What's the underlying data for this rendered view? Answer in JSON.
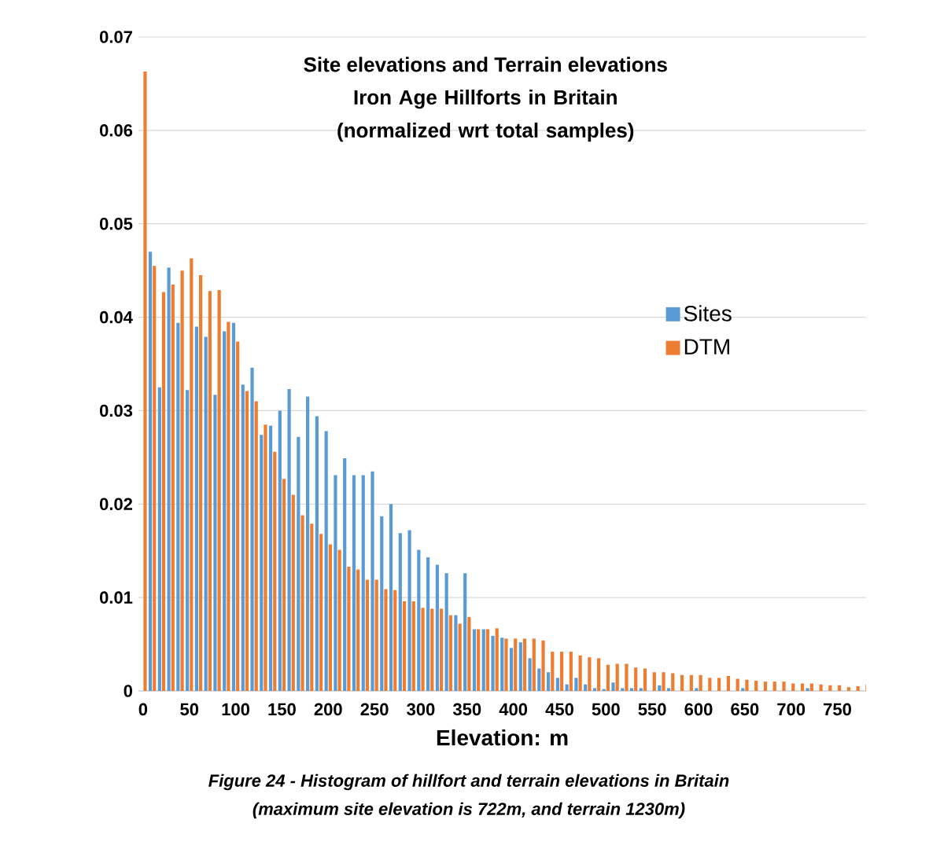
{
  "chart_data": {
    "type": "bar",
    "title": "Site elevations and Terrain elevations",
    "subtitle": "Iron Age Hillforts in Britain (normalized wrt total samples)",
    "xlabel": "Elevation: m",
    "annotations": [
      "Figure 24 - Histogram of hillfort and terrain elevations in Britain",
      "(maximum site elevation is 722m, and terrain 1230m)"
    ],
    "categories": [
      "0",
      null,
      null,
      null,
      null,
      "50",
      null,
      null,
      null,
      null,
      "100",
      null,
      null,
      null,
      null,
      "150",
      null,
      null,
      null,
      null,
      "200",
      null,
      null,
      null,
      null,
      "250",
      null,
      null,
      null,
      null,
      "300",
      null,
      null,
      null,
      null,
      "350",
      null,
      null,
      null,
      null,
      "400",
      null,
      null,
      null,
      null,
      "450",
      null,
      null,
      null,
      null,
      "500",
      null,
      null,
      null,
      null,
      "550",
      null,
      null,
      null,
      null,
      "600",
      null,
      null,
      null,
      null,
      "650",
      null,
      null,
      null,
      null,
      "700",
      null,
      null,
      null,
      null,
      "750",
      null,
      null,
      null
    ],
    "series": [
      {
        "name": "Sites",
        "color": "#5b9bd5",
        "values": [
          0,
          0.047,
          0.0325,
          0.0453,
          0.0394,
          0.0322,
          0.039,
          0.0379,
          0.0317,
          0.0385,
          0.0394,
          0.0328,
          0.0346,
          0.0274,
          0.0284,
          0.03,
          0.0323,
          0.0272,
          0.0315,
          0.0294,
          0.0278,
          0.0231,
          0.0249,
          0.0231,
          0.0231,
          0.0235,
          0.0187,
          0.02,
          0.0169,
          0.0172,
          0.0151,
          0.0143,
          0.0135,
          0.0126,
          0.0081,
          0.0126,
          0.0066,
          0.0066,
          0.0059,
          0.0057,
          0.0046,
          0.0052,
          0.0035,
          0.0024,
          0.002,
          0.0014,
          0.0007,
          0.0014,
          0.0007,
          0.0003,
          0.0002,
          0.0009,
          0.0003,
          0.0003,
          0.0003,
          0,
          0.0006,
          0.0003,
          0,
          0,
          0.0003,
          0,
          0,
          0,
          0,
          0.0003,
          0,
          0,
          0,
          0,
          0,
          0,
          0.0003,
          0,
          0,
          0,
          0,
          0,
          0
        ]
      },
      {
        "name": "DTM",
        "color": "#ed7d31",
        "values": [
          0.0663,
          0.0455,
          0.0427,
          0.0435,
          0.045,
          0.0463,
          0.0445,
          0.0428,
          0.0429,
          0.0395,
          0.0374,
          0.0321,
          0.031,
          0.0285,
          0.0256,
          0.0227,
          0.021,
          0.0188,
          0.0179,
          0.0168,
          0.0157,
          0.0151,
          0.0133,
          0.013,
          0.0119,
          0.0119,
          0.0109,
          0.0108,
          0.0096,
          0.0096,
          0.0089,
          0.0088,
          0.0088,
          0.0081,
          0.0072,
          0.0079,
          0.0066,
          0.0066,
          0.0067,
          0.0056,
          0.0056,
          0.0056,
          0.0056,
          0.0054,
          0.0042,
          0.0042,
          0.0042,
          0.0038,
          0.0036,
          0.0035,
          0.0028,
          0.0029,
          0.0029,
          0.0025,
          0.0024,
          0.002,
          0.002,
          0.0019,
          0.0017,
          0.0017,
          0.0017,
          0.0014,
          0.0014,
          0.0016,
          0.0013,
          0.0012,
          0.0011,
          0.001,
          0.001,
          0.001,
          0.0008,
          0.0008,
          0.0008,
          0.0007,
          0.0006,
          0.0006,
          0.0004,
          0.0005,
          0.0007
        ]
      }
    ],
    "ylim": [
      0,
      0.07
    ],
    "yticks": [
      0,
      0.01,
      0.02,
      0.03,
      0.04,
      0.05,
      0.06,
      0.07
    ],
    "grid": "y",
    "legend": "right"
  }
}
